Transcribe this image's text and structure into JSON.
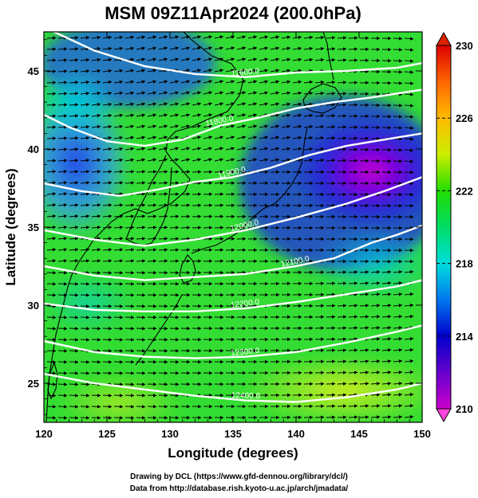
{
  "chart_data": {
    "type": "heatmap",
    "title": "MSM 09Z11Apr2024 (200.0hPa)",
    "xlabel": "Longitude (degrees)",
    "ylabel": "Latitude  (degrees)",
    "xlim": [
      120,
      150
    ],
    "ylim": [
      22.5,
      47.5
    ],
    "x_ticks": [
      120,
      125,
      130,
      135,
      140,
      145,
      150
    ],
    "y_ticks": [
      25,
      30,
      35,
      40,
      45
    ],
    "colorbar": {
      "min": 210,
      "max": 230,
      "ticks": [
        210,
        214,
        218,
        222,
        226,
        230
      ],
      "extend": "both",
      "colormap": "rainbow (magenta-blue-cyan-green-yellow-red)"
    },
    "field": "temperature (K), shaded",
    "vectors": "wind arrows, predominantly westerly",
    "contours": {
      "name": "geopotential height",
      "color": "#ffffff",
      "levels": [
        {
          "label": "11600.0",
          "points": [
            [
              120,
              47.8
            ],
            [
              124,
              46.3
            ],
            [
              128,
              45.3
            ],
            [
              132,
              44.8
            ],
            [
              136,
              44.6
            ],
            [
              140,
              44.9
            ],
            [
              144,
              45.0
            ],
            [
              148,
              45.2
            ],
            [
              150,
              45.5
            ]
          ]
        },
        {
          "label": "11800.0",
          "points": [
            [
              120,
              42.2
            ],
            [
              122,
              41.4
            ],
            [
              125,
              40.5
            ],
            [
              128,
              40.2
            ],
            [
              131,
              40.6
            ],
            [
              134,
              41.5
            ],
            [
              137,
              42.0
            ],
            [
              140,
              42.6
            ],
            [
              143,
              43.0
            ],
            [
              146,
              43.3
            ],
            [
              150,
              43.8
            ]
          ]
        },
        {
          "label": "11900.0",
          "points": [
            [
              120,
              37.8
            ],
            [
              123,
              37.3
            ],
            [
              126,
              37.0
            ],
            [
              129,
              37.4
            ],
            [
              132,
              37.9
            ],
            [
              135,
              38.2
            ],
            [
              138,
              38.8
            ],
            [
              141,
              39.6
            ],
            [
              144,
              40.2
            ],
            [
              147,
              40.6
            ],
            [
              150,
              41.0
            ]
          ]
        },
        {
          "label": "12000.0",
          "points": [
            [
              120,
              34.8
            ],
            [
              124,
              34.2
            ],
            [
              128,
              33.8
            ],
            [
              132,
              34.2
            ],
            [
              136,
              34.8
            ],
            [
              140,
              35.6
            ],
            [
              144,
              36.5
            ],
            [
              147,
              37.3
            ],
            [
              150,
              38.2
            ]
          ]
        },
        {
          "label": "12100.0",
          "points": [
            [
              120,
              32.5
            ],
            [
              124,
              31.9
            ],
            [
              128,
              31.6
            ],
            [
              132,
              31.8
            ],
            [
              136,
              32.0
            ],
            [
              140,
              32.5
            ],
            [
              143,
              33.0
            ],
            [
              146,
              34.0
            ],
            [
              148,
              34.5
            ],
            [
              150,
              35.1
            ]
          ]
        },
        {
          "label": "12200.0",
          "points": [
            [
              120,
              30.1
            ],
            [
              124,
              29.7
            ],
            [
              128,
              29.6
            ],
            [
              132,
              29.6
            ],
            [
              136,
              29.8
            ],
            [
              140,
              30.2
            ],
            [
              144,
              30.7
            ],
            [
              148,
              31.2
            ],
            [
              150,
              31.6
            ]
          ]
        },
        {
          "label": "12300.0",
          "points": [
            [
              120,
              27.7
            ],
            [
              124,
              27.0
            ],
            [
              128,
              26.7
            ],
            [
              132,
              26.6
            ],
            [
              136,
              26.7
            ],
            [
              140,
              27.0
            ],
            [
              144,
              27.6
            ],
            [
              148,
              28.3
            ],
            [
              150,
              28.7
            ]
          ]
        },
        {
          "label": "12400.0",
          "points": [
            [
              120,
              25.6
            ],
            [
              124,
              25.0
            ],
            [
              128,
              24.6
            ],
            [
              132,
              24.2
            ],
            [
              136,
              23.9
            ],
            [
              140,
              23.8
            ],
            [
              144,
              24.1
            ],
            [
              148,
              24.6
            ],
            [
              150,
              25.0
            ]
          ]
        }
      ]
    }
  },
  "credits": {
    "line1": "Drawing by DCL (https://www.gfd-dennou.org/library/dcl/)",
    "line2": "Data from http://database.rish.kyoto-u.ac.jp/arch/jmadata/"
  }
}
